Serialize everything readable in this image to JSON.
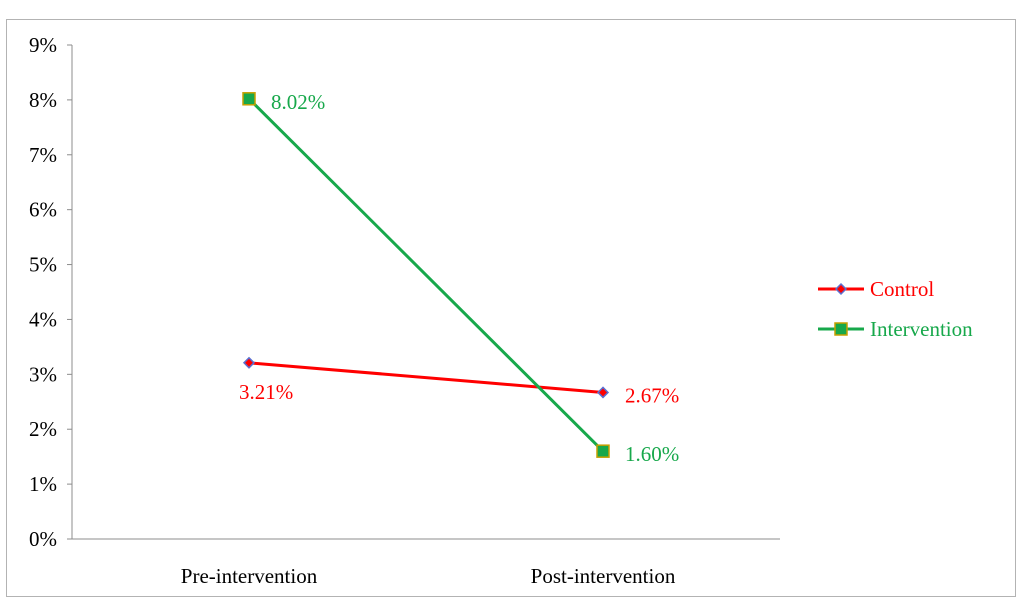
{
  "chart_data": {
    "type": "line",
    "categories": [
      "Pre-intervention",
      "Post-intervention"
    ],
    "ylim": [
      0,
      9
    ],
    "y_ticks": [
      0,
      1,
      2,
      3,
      4,
      5,
      6,
      7,
      8,
      9
    ],
    "y_tick_labels": [
      "0%",
      "1%",
      "2%",
      "3%",
      "4%",
      "5%",
      "6%",
      "7%",
      "8%",
      "9%"
    ],
    "grid": false,
    "legend_position": "right",
    "series": [
      {
        "name": "Control",
        "values": [
          3.21,
          2.67
        ],
        "labels": [
          "3.21%",
          "2.67%"
        ],
        "color": "#ff0000",
        "marker": "diamond",
        "marker_color": "#5b6fd0"
      },
      {
        "name": "Intervention",
        "values": [
          8.02,
          1.6
        ],
        "labels": [
          "8.02%",
          "1.60%"
        ],
        "color": "#17a84b",
        "marker": "square",
        "marker_color": "#c5a000"
      }
    ]
  }
}
